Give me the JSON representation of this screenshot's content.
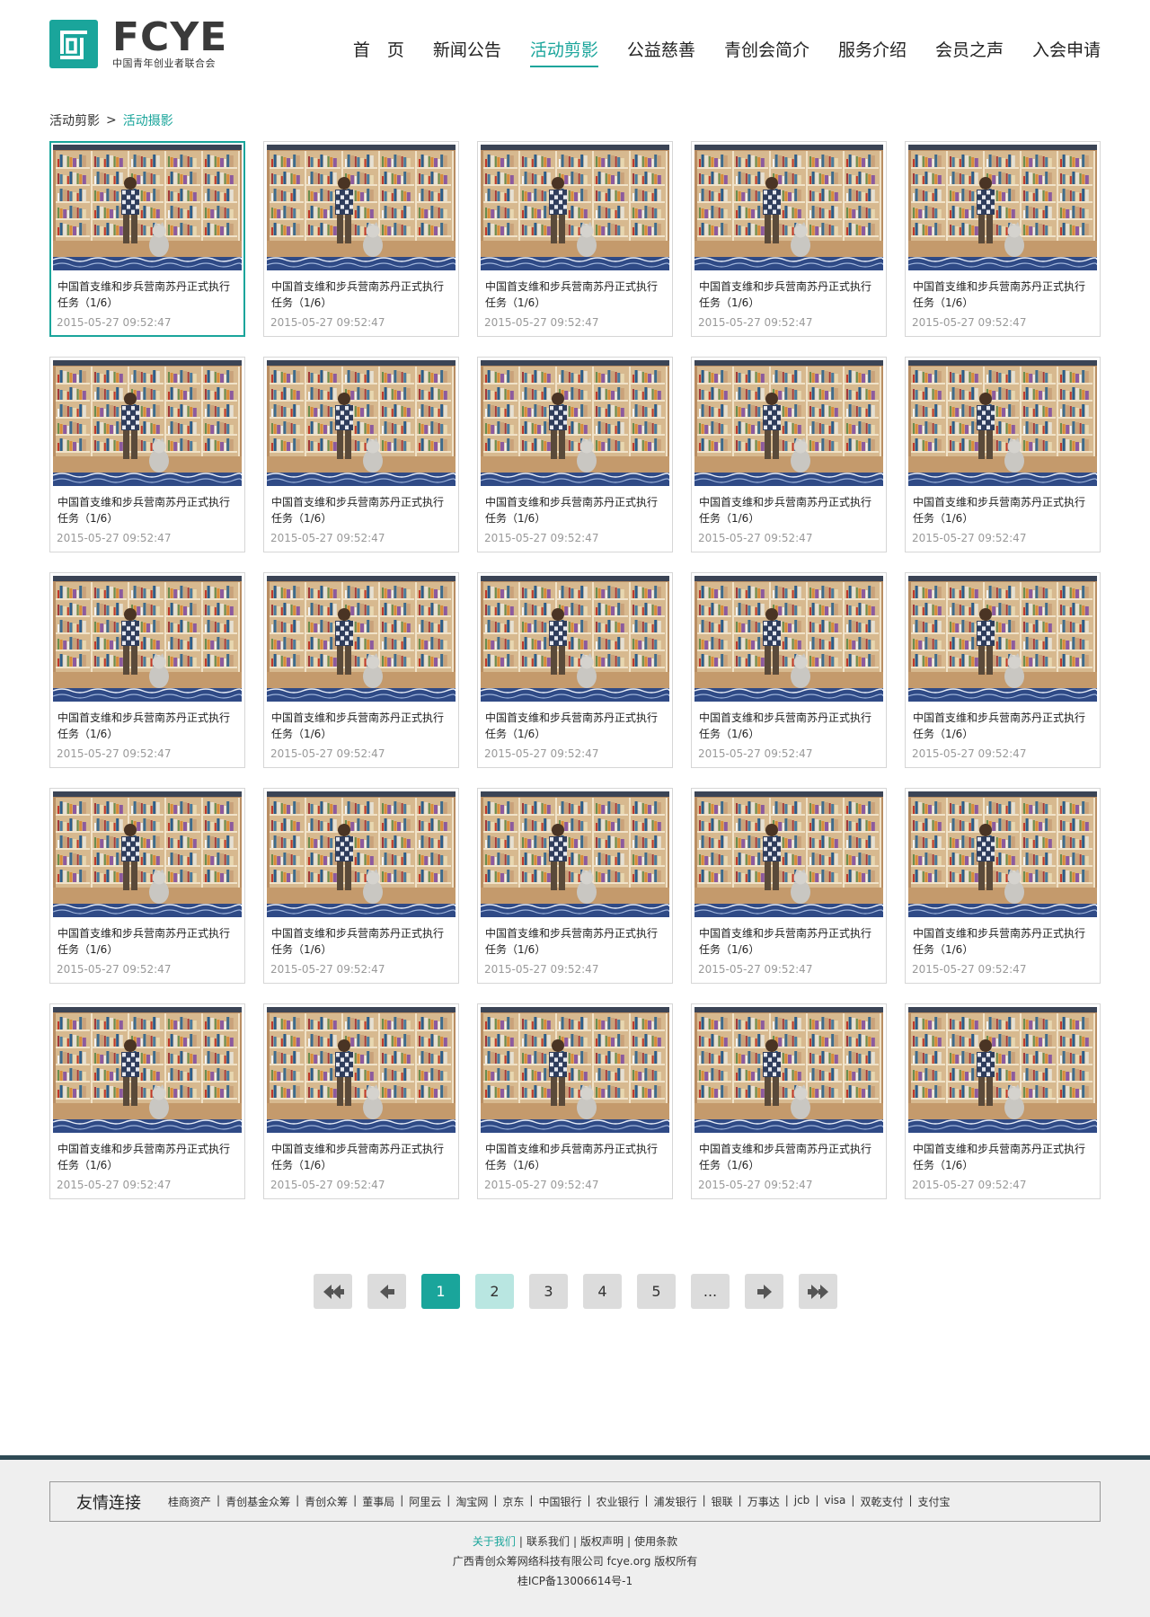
{
  "logo": {
    "word": "FCYE",
    "sub": "中国青年创业者联合会"
  },
  "nav": [
    {
      "label": "首　页",
      "active": false
    },
    {
      "label": "新闻公告",
      "active": false
    },
    {
      "label": "活动剪影",
      "active": true
    },
    {
      "label": "公益慈善",
      "active": false
    },
    {
      "label": "青创会简介",
      "active": false
    },
    {
      "label": "服务介绍",
      "active": false
    },
    {
      "label": "会员之声",
      "active": false
    },
    {
      "label": "入会申请",
      "active": false
    }
  ],
  "breadcrumb": {
    "parent": "活动剪影",
    "sep": ">",
    "current": "活动摄影"
  },
  "cards": [
    {
      "title": "中国首支维和步兵营南苏丹正式执行任务（1/6）",
      "date": "2015-05-27 09:52:47",
      "selected": true
    },
    {
      "title": "中国首支维和步兵营南苏丹正式执行任务（1/6）",
      "date": "2015-05-27 09:52:47"
    },
    {
      "title": "中国首支维和步兵营南苏丹正式执行任务（1/6）",
      "date": "2015-05-27 09:52:47"
    },
    {
      "title": "中国首支维和步兵营南苏丹正式执行任务（1/6）",
      "date": "2015-05-27 09:52:47"
    },
    {
      "title": "中国首支维和步兵营南苏丹正式执行任务（1/6）",
      "date": "2015-05-27 09:52:47"
    },
    {
      "title": "中国首支维和步兵营南苏丹正式执行任务（1/6）",
      "date": "2015-05-27 09:52:47"
    },
    {
      "title": "中国首支维和步兵营南苏丹正式执行任务（1/6）",
      "date": "2015-05-27 09:52:47"
    },
    {
      "title": "中国首支维和步兵营南苏丹正式执行任务（1/6）",
      "date": "2015-05-27 09:52:47"
    },
    {
      "title": "中国首支维和步兵营南苏丹正式执行任务（1/6）",
      "date": "2015-05-27 09:52:47"
    },
    {
      "title": "中国首支维和步兵营南苏丹正式执行任务（1/6）",
      "date": "2015-05-27 09:52:47"
    },
    {
      "title": "中国首支维和步兵营南苏丹正式执行任务（1/6）",
      "date": "2015-05-27 09:52:47"
    },
    {
      "title": "中国首支维和步兵营南苏丹正式执行任务（1/6）",
      "date": "2015-05-27 09:52:47"
    },
    {
      "title": "中国首支维和步兵营南苏丹正式执行任务（1/6）",
      "date": "2015-05-27 09:52:47"
    },
    {
      "title": "中国首支维和步兵营南苏丹正式执行任务（1/6）",
      "date": "2015-05-27 09:52:47"
    },
    {
      "title": "中国首支维和步兵营南苏丹正式执行任务（1/6）",
      "date": "2015-05-27 09:52:47"
    },
    {
      "title": "中国首支维和步兵营南苏丹正式执行任务（1/6）",
      "date": "2015-05-27 09:52:47"
    },
    {
      "title": "中国首支维和步兵营南苏丹正式执行任务（1/6）",
      "date": "2015-05-27 09:52:47"
    },
    {
      "title": "中国首支维和步兵营南苏丹正式执行任务（1/6）",
      "date": "2015-05-27 09:52:47"
    },
    {
      "title": "中国首支维和步兵营南苏丹正式执行任务（1/6）",
      "date": "2015-05-27 09:52:47"
    },
    {
      "title": "中国首支维和步兵营南苏丹正式执行任务（1/6）",
      "date": "2015-05-27 09:52:47"
    },
    {
      "title": "中国首支维和步兵营南苏丹正式执行任务（1/6）",
      "date": "2015-05-27 09:52:47"
    },
    {
      "title": "中国首支维和步兵营南苏丹正式执行任务（1/6）",
      "date": "2015-05-27 09:52:47"
    },
    {
      "title": "中国首支维和步兵营南苏丹正式执行任务（1/6）",
      "date": "2015-05-27 09:52:47"
    },
    {
      "title": "中国首支维和步兵营南苏丹正式执行任务（1/6）",
      "date": "2015-05-27 09:52:47"
    },
    {
      "title": "中国首支维和步兵营南苏丹正式执行任务（1/6）",
      "date": "2015-05-27 09:52:47"
    }
  ],
  "pagination": {
    "first_icon": "double-left-arrow-icon",
    "prev_icon": "left-arrow-icon",
    "pages": [
      "1",
      "2",
      "3",
      "4",
      "5",
      "..."
    ],
    "current": "1",
    "next_icon": "right-arrow-icon",
    "last_icon": "double-right-arrow-icon"
  },
  "footer": {
    "links_title": "友情连接",
    "links": [
      "桂商资产",
      "青创基金众筹",
      "青创众筹",
      "董事局",
      "阿里云",
      "淘宝网",
      "京东",
      "中国银行",
      "农业银行",
      "浦发银行",
      "银联",
      "万事达",
      "jcb",
      "visa",
      "双乾支付",
      "支付宝"
    ],
    "bottom_links": [
      "关于我们",
      "联系我们",
      "版权声明",
      "使用条款"
    ],
    "company": "广西青创众筹网络科技有限公司 fcye.org 版权所有",
    "icp": "桂ICP备13006614号-1"
  },
  "colors": {
    "accent": "#1aa59b",
    "footer_border": "#2e4a55",
    "footer_bg": "#efefef"
  }
}
